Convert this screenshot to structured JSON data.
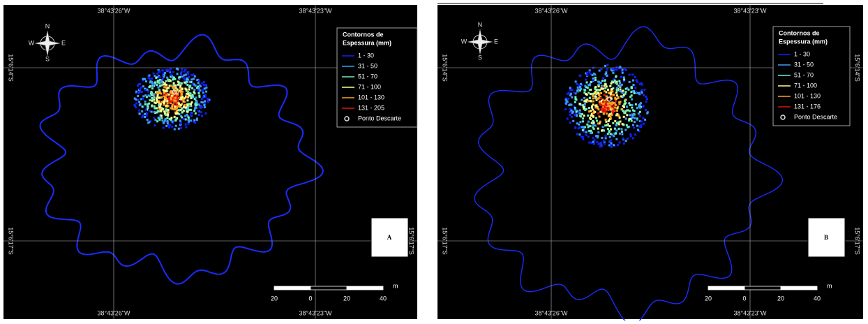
{
  "panels": [
    {
      "letter": "A",
      "top_labels": [
        "38°43'26\"W",
        "38°43'23\"W"
      ],
      "bottom_labels": [
        "38°43'26\"W",
        "38°43'23\"W"
      ],
      "left_labels": [
        "15°6'14\"S",
        "15°6'17\"S"
      ],
      "right_labels": [
        "15°6'14\"S",
        "15°6'17\"S"
      ],
      "compass": [
        "N",
        "S",
        "E",
        "W"
      ],
      "legend": {
        "title": [
          "Contornos de",
          "Espessura (mm)"
        ],
        "items": [
          "1 - 30",
          "31 - 50",
          "51 - 70",
          "71 - 100",
          "101 - 130",
          "131 - 205"
        ],
        "point": "Ponto Descarte"
      },
      "scale": {
        "labels": [
          "20",
          "0",
          "20",
          "40"
        ],
        "unit": "m"
      }
    },
    {
      "letter": "B",
      "top_labels": [
        "38°43'26\"W",
        "38°43'23\"W"
      ],
      "bottom_labels": [
        "38°43'26\"W",
        "38°43'23\"W"
      ],
      "left_labels": [
        "15°6'14\"S",
        "15°6'17\"S"
      ],
      "right_labels": [
        "15°6'14\"S",
        "15°6'17\"S"
      ],
      "compass": [
        "N",
        "S",
        "E",
        "W"
      ],
      "legend": {
        "title": [
          "Contornos de",
          "Espessura (mm)"
        ],
        "items": [
          "1 - 30",
          "31 - 50",
          "51 - 70",
          "71 - 100",
          "101 - 130",
          "131 - 176"
        ],
        "point": "Ponto Descarte"
      },
      "scale": {
        "labels": [
          "20",
          "0",
          "20",
          "40"
        ],
        "unit": "m"
      }
    }
  ]
}
